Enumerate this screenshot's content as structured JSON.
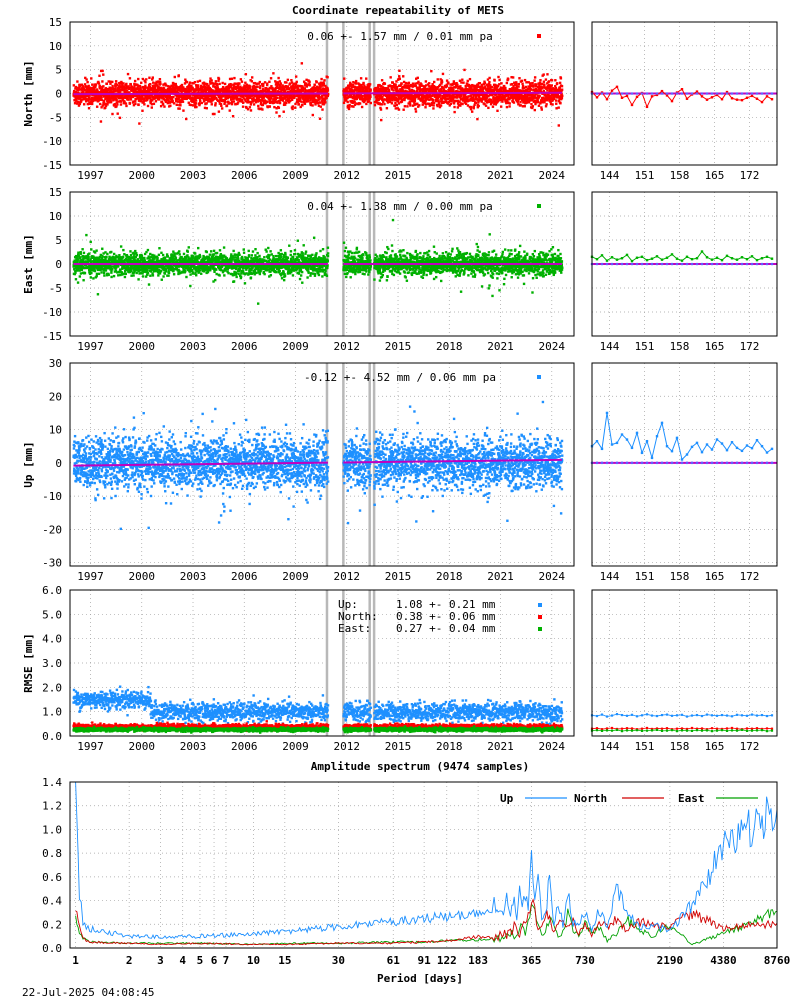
{
  "page": {
    "title": "Coordinate repeatability of METS",
    "timestamp": "22-Jul-2025 04:08:45"
  },
  "chart_data": [
    {
      "type": "scatter",
      "panel": "north",
      "ylabel": "North [mm]",
      "ylim": [
        -15,
        15
      ],
      "yticks": [
        15,
        10,
        5,
        0,
        -5,
        -10,
        -15
      ],
      "xticks": [
        "1997",
        "2000",
        "2003",
        "2006",
        "2009",
        "2012",
        "2015",
        "2018",
        "2021",
        "2024"
      ],
      "xlim": [
        1995.8,
        2025.3
      ],
      "annotation": "0.06 +- 1.57 mm /  0.01 mm pa",
      "color": "#ff0000",
      "spread": 1.57,
      "trend_mm_pa": 0.01,
      "gaps": [
        [
          2010.9,
          2011.8
        ],
        [
          2013.4,
          2013.6
        ]
      ],
      "recent": {
        "xticks": [
          "144",
          "151",
          "158",
          "165",
          "172"
        ],
        "xlim": [
          140.5,
          177.5
        ],
        "values": [
          0.3,
          -0.8,
          0.2,
          -1.2,
          0.6,
          1.4,
          -0.9,
          -0.5,
          -2.4,
          -0.7,
          0.1,
          -2.8,
          -0.6,
          -0.3,
          0.5,
          -0.4,
          -1.6,
          0.2,
          0.9,
          -1.1,
          -0.2,
          0.4,
          -0.6,
          -1.3,
          -0.8,
          -0.3,
          -1.2,
          0.3,
          -1.0,
          -1.3,
          -1.4,
          -0.9,
          -0.5,
          -1.1,
          -1.8,
          -0.6,
          -1.2
        ]
      }
    },
    {
      "type": "scatter",
      "panel": "east",
      "ylabel": "East [mm]",
      "ylim": [
        -15,
        15
      ],
      "yticks": [
        15,
        10,
        5,
        0,
        -5,
        -10,
        -15
      ],
      "xticks": [
        "1997",
        "2000",
        "2003",
        "2006",
        "2009",
        "2012",
        "2015",
        "2018",
        "2021",
        "2024"
      ],
      "xlim": [
        1995.8,
        2025.3
      ],
      "annotation": "0.04 +- 1.38 mm /  0.00 mm pa",
      "color": "#00b000",
      "spread": 1.38,
      "trend_mm_pa": 0.0,
      "gaps": [
        [
          2010.9,
          2011.8
        ],
        [
          2013.4,
          2013.6
        ]
      ],
      "recent": {
        "xticks": [
          "144",
          "151",
          "158",
          "165",
          "172"
        ],
        "xlim": [
          140.5,
          177.5
        ],
        "values": [
          1.5,
          1.0,
          1.8,
          0.7,
          1.4,
          0.9,
          1.2,
          1.9,
          0.6,
          1.3,
          1.5,
          0.8,
          1.1,
          1.6,
          0.9,
          1.3,
          2.0,
          1.1,
          0.7,
          1.5,
          1.0,
          1.2,
          2.6,
          1.4,
          0.9,
          1.3,
          0.8,
          1.7,
          1.2,
          0.9,
          1.4,
          1.0,
          1.6,
          0.8,
          1.2,
          1.5,
          1.1
        ]
      }
    },
    {
      "type": "scatter",
      "panel": "up",
      "ylabel": "Up [mm]",
      "ylim": [
        -31,
        30
      ],
      "yticks": [
        30,
        20,
        10,
        0,
        -10,
        -20,
        -30
      ],
      "xticks": [
        "1997",
        "2000",
        "2003",
        "2006",
        "2009",
        "2012",
        "2015",
        "2018",
        "2021",
        "2024"
      ],
      "xlim": [
        1995.8,
        2025.3
      ],
      "annotation": "-0.12 +- 4.52 mm /  0.06 mm pa",
      "color": "#1e90ff",
      "spread": 4.52,
      "trend_mm_pa": 0.06,
      "gaps": [
        [
          2010.9,
          2011.8
        ],
        [
          2013.4,
          2013.6
        ]
      ],
      "recent": {
        "xticks": [
          "144",
          "151",
          "158",
          "165",
          "172"
        ],
        "xlim": [
          140.5,
          177.5
        ],
        "values": [
          5.0,
          6.5,
          4.2,
          15.0,
          5.5,
          6.0,
          8.5,
          7.0,
          4.5,
          9.0,
          3.0,
          6.5,
          1.5,
          8.0,
          12.0,
          5.0,
          3.5,
          7.5,
          1.0,
          2.5,
          4.8,
          6.0,
          3.2,
          5.5,
          4.0,
          7.0,
          5.8,
          3.8,
          6.2,
          4.5,
          3.6,
          5.2,
          4.4,
          6.8,
          5.0,
          3.1,
          4.2
        ]
      }
    },
    {
      "type": "scatter",
      "panel": "rmse",
      "ylabel": "RMSE [mm]",
      "ylim": [
        0,
        6
      ],
      "yticks": [
        "6.0",
        "5.0",
        "4.0",
        "3.0",
        "2.0",
        "1.0",
        "0.0"
      ],
      "xticks": [
        "1997",
        "2000",
        "2003",
        "2006",
        "2009",
        "2012",
        "2015",
        "2018",
        "2021",
        "2024"
      ],
      "xlim": [
        1995.8,
        2025.3
      ],
      "gaps": [
        [
          2010.9,
          2011.8
        ],
        [
          2013.4,
          2013.6
        ]
      ],
      "series": [
        {
          "name": "Up:",
          "stats": "1.08 +- 0.21 mm",
          "mean": 1.08,
          "sd": 0.21,
          "color": "#1e90ff"
        },
        {
          "name": "North:",
          "stats": "0.38 +- 0.06 mm",
          "mean": 0.38,
          "sd": 0.06,
          "color": "#ff0000"
        },
        {
          "name": "East:",
          "stats": "0.27 +- 0.04 mm",
          "mean": 0.27,
          "sd": 0.04,
          "color": "#00b000"
        }
      ],
      "recent": {
        "xticks": [
          "144",
          "151",
          "158",
          "165",
          "172"
        ],
        "xlim": [
          140.5,
          177.5
        ],
        "up": [
          0.85,
          0.82,
          0.88,
          0.8,
          0.84,
          0.9,
          0.86,
          0.83,
          0.87,
          0.81,
          0.85,
          0.89,
          0.84,
          0.82,
          0.86,
          0.88,
          0.83,
          0.85,
          0.87,
          0.8,
          0.84,
          0.86,
          0.82,
          0.88,
          0.85,
          0.83,
          0.86,
          0.84,
          0.81,
          0.87,
          0.85,
          0.83,
          0.88,
          0.84,
          0.86,
          0.82,
          0.85
        ],
        "north": [
          0.3,
          0.32,
          0.28,
          0.31,
          0.33,
          0.29,
          0.3,
          0.32,
          0.31,
          0.28,
          0.3,
          0.33,
          0.29,
          0.31,
          0.3,
          0.32,
          0.28,
          0.3,
          0.31,
          0.29,
          0.33,
          0.3,
          0.31,
          0.28,
          0.32,
          0.3,
          0.29,
          0.31,
          0.33,
          0.3,
          0.28,
          0.31,
          0.3,
          0.32,
          0.29,
          0.31,
          0.3
        ],
        "east": [
          0.22,
          0.24,
          0.21,
          0.23,
          0.22,
          0.25,
          0.2,
          0.23,
          0.22,
          0.24,
          0.21,
          0.22,
          0.23,
          0.25,
          0.21,
          0.22,
          0.24,
          0.2,
          0.23,
          0.22,
          0.21,
          0.24,
          0.22,
          0.23,
          0.2,
          0.22,
          0.24,
          0.21,
          0.23,
          0.22,
          0.25,
          0.21,
          0.22,
          0.23,
          0.24,
          0.2,
          0.22
        ]
      }
    },
    {
      "type": "line",
      "panel": "spectrum",
      "title": "Amplitude spectrum (9474 samples)",
      "xlabel": "Period [days]",
      "xscale": "reciprocal",
      "xticks": [
        1,
        2,
        3,
        4,
        5,
        6,
        7,
        10,
        15,
        30,
        61,
        91,
        122,
        183,
        365,
        730,
        2190,
        4380,
        8760
      ],
      "ylim": [
        0,
        1.4
      ],
      "yticks": [
        "1.4",
        "1.2",
        "1.0",
        "0.8",
        "0.6",
        "0.4",
        "0.2",
        "0.0"
      ],
      "legend_position": "top-right",
      "series": [
        {
          "name": "Up",
          "color": "#1e90ff",
          "x": [
            8760,
            4380,
            2920,
            2190,
            1752,
            1460,
            1251,
            1095,
            973,
            876,
            796,
            730,
            674,
            626,
            584,
            548,
            515,
            487,
            461,
            438,
            417,
            398,
            381,
            365,
            350,
            337,
            324,
            313,
            302,
            292,
            283,
            274,
            265,
            258,
            250,
            243,
            237,
            230,
            225,
            219,
            183,
            122,
            91,
            61,
            30,
            15,
            10,
            5,
            3,
            2,
            1.2,
            1.1,
            1.05,
            1.0
          ],
          "y": [
            1.17,
            0.84,
            0.36,
            0.15,
            0.19,
            0.18,
            0.32,
            0.48,
            0.16,
            0.33,
            0.15,
            0.3,
            0.22,
            0.2,
            0.48,
            0.2,
            0.36,
            0.22,
            0.58,
            0.3,
            0.25,
            0.55,
            0.42,
            0.78,
            0.3,
            0.45,
            0.3,
            0.62,
            0.25,
            0.4,
            0.35,
            0.28,
            0.46,
            0.3,
            0.36,
            0.32,
            0.3,
            0.26,
            0.38,
            0.3,
            0.28,
            0.26,
            0.25,
            0.22,
            0.18,
            0.14,
            0.12,
            0.1,
            0.09,
            0.1,
            0.16,
            0.22,
            0.48,
            1.25
          ]
        },
        {
          "name": "North",
          "color": "#d00000",
          "x": [
            8760,
            4380,
            2920,
            2190,
            1752,
            1460,
            1251,
            1095,
            973,
            876,
            796,
            730,
            674,
            626,
            584,
            548,
            515,
            487,
            461,
            438,
            417,
            398,
            381,
            365,
            350,
            337,
            324,
            313,
            302,
            292,
            283,
            274,
            265,
            258,
            250,
            243,
            237,
            230,
            225,
            219,
            183,
            122,
            91,
            61,
            30,
            15,
            10,
            5,
            3,
            2,
            1.2,
            1.1,
            1.05,
            1.0
          ],
          "y": [
            0.21,
            0.17,
            0.29,
            0.19,
            0.2,
            0.22,
            0.15,
            0.25,
            0.18,
            0.22,
            0.1,
            0.2,
            0.12,
            0.22,
            0.16,
            0.28,
            0.2,
            0.12,
            0.25,
            0.3,
            0.22,
            0.15,
            0.32,
            0.38,
            0.26,
            0.2,
            0.18,
            0.1,
            0.15,
            0.2,
            0.12,
            0.18,
            0.08,
            0.14,
            0.1,
            0.12,
            0.08,
            0.1,
            0.06,
            0.08,
            0.1,
            0.06,
            0.05,
            0.04,
            0.04,
            0.03,
            0.03,
            0.04,
            0.03,
            0.04,
            0.05,
            0.08,
            0.18,
            0.32
          ]
        },
        {
          "name": "East",
          "color": "#00a000",
          "x": [
            8760,
            4380,
            2920,
            2190,
            1752,
            1460,
            1251,
            1095,
            973,
            876,
            796,
            730,
            674,
            626,
            584,
            548,
            515,
            487,
            461,
            438,
            417,
            398,
            381,
            365,
            350,
            337,
            324,
            313,
            302,
            292,
            283,
            274,
            265,
            258,
            250,
            243,
            237,
            230,
            225,
            219,
            183,
            122,
            91,
            61,
            30,
            15,
            10,
            5,
            3,
            2,
            1.2,
            1.1,
            1.05,
            1.0
          ],
          "y": [
            0.31,
            0.12,
            0.03,
            0.2,
            0.1,
            0.16,
            0.24,
            0.12,
            0.06,
            0.18,
            0.12,
            0.22,
            0.1,
            0.16,
            0.3,
            0.14,
            0.08,
            0.2,
            0.26,
            0.15,
            0.1,
            0.22,
            0.33,
            0.35,
            0.26,
            0.12,
            0.2,
            0.15,
            0.1,
            0.08,
            0.14,
            0.1,
            0.12,
            0.08,
            0.1,
            0.06,
            0.09,
            0.07,
            0.05,
            0.08,
            0.07,
            0.06,
            0.05,
            0.05,
            0.04,
            0.04,
            0.03,
            0.04,
            0.04,
            0.04,
            0.05,
            0.08,
            0.14,
            0.25
          ]
        }
      ]
    }
  ]
}
